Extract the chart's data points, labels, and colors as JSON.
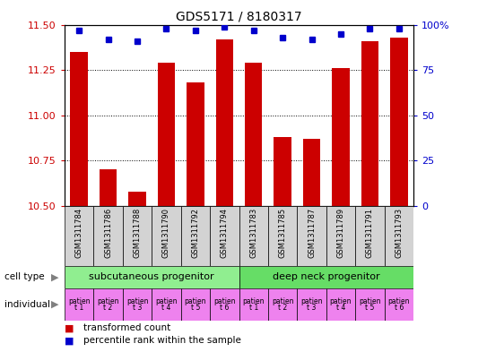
{
  "title": "GDS5171 / 8180317",
  "samples": [
    "GSM1311784",
    "GSM1311786",
    "GSM1311788",
    "GSM1311790",
    "GSM1311792",
    "GSM1311794",
    "GSM1311783",
    "GSM1311785",
    "GSM1311787",
    "GSM1311789",
    "GSM1311791",
    "GSM1311793"
  ],
  "red_values": [
    11.35,
    10.7,
    10.58,
    11.29,
    11.18,
    11.42,
    11.29,
    10.88,
    10.87,
    11.26,
    11.41,
    11.43
  ],
  "blue_values": [
    97,
    92,
    91,
    98,
    97,
    99,
    97,
    93,
    92,
    95,
    98,
    98
  ],
  "ylim_left": [
    10.5,
    11.5
  ],
  "ylim_right": [
    0,
    100
  ],
  "yticks_left": [
    10.5,
    10.75,
    11.0,
    11.25,
    11.5
  ],
  "yticks_right": [
    0,
    25,
    50,
    75,
    100
  ],
  "cell_type_groups": [
    {
      "label": "subcutaneous progenitor",
      "start": 0,
      "end": 6,
      "color": "#90ee90"
    },
    {
      "label": "deep neck progenitor",
      "start": 6,
      "end": 12,
      "color": "#66dd66"
    }
  ],
  "individual_labels": [
    "t 1",
    "t 2",
    "t 3",
    "t 4",
    "t 5",
    "t 6",
    "t 1",
    "t 2",
    "t 3",
    "t 4",
    "t 5",
    "t 6"
  ],
  "individual_prefix": "patien",
  "ind_colors": [
    "#ee82ee",
    "#ee82ee",
    "#ee82ee",
    "#ee82ee",
    "#ee82ee",
    "#ee82ee",
    "#ee82ee",
    "#ee82ee",
    "#ee82ee",
    "#ee82ee",
    "#ee82ee",
    "#ee82ee"
  ],
  "bar_color": "#cc0000",
  "dot_color": "#0000cc",
  "axis_color_left": "#cc0000",
  "axis_color_right": "#0000cc",
  "sample_box_color": "#d3d3d3",
  "legend_items": [
    {
      "color": "#cc0000",
      "label": "transformed count"
    },
    {
      "color": "#0000cc",
      "label": "percentile rank within the sample"
    }
  ]
}
